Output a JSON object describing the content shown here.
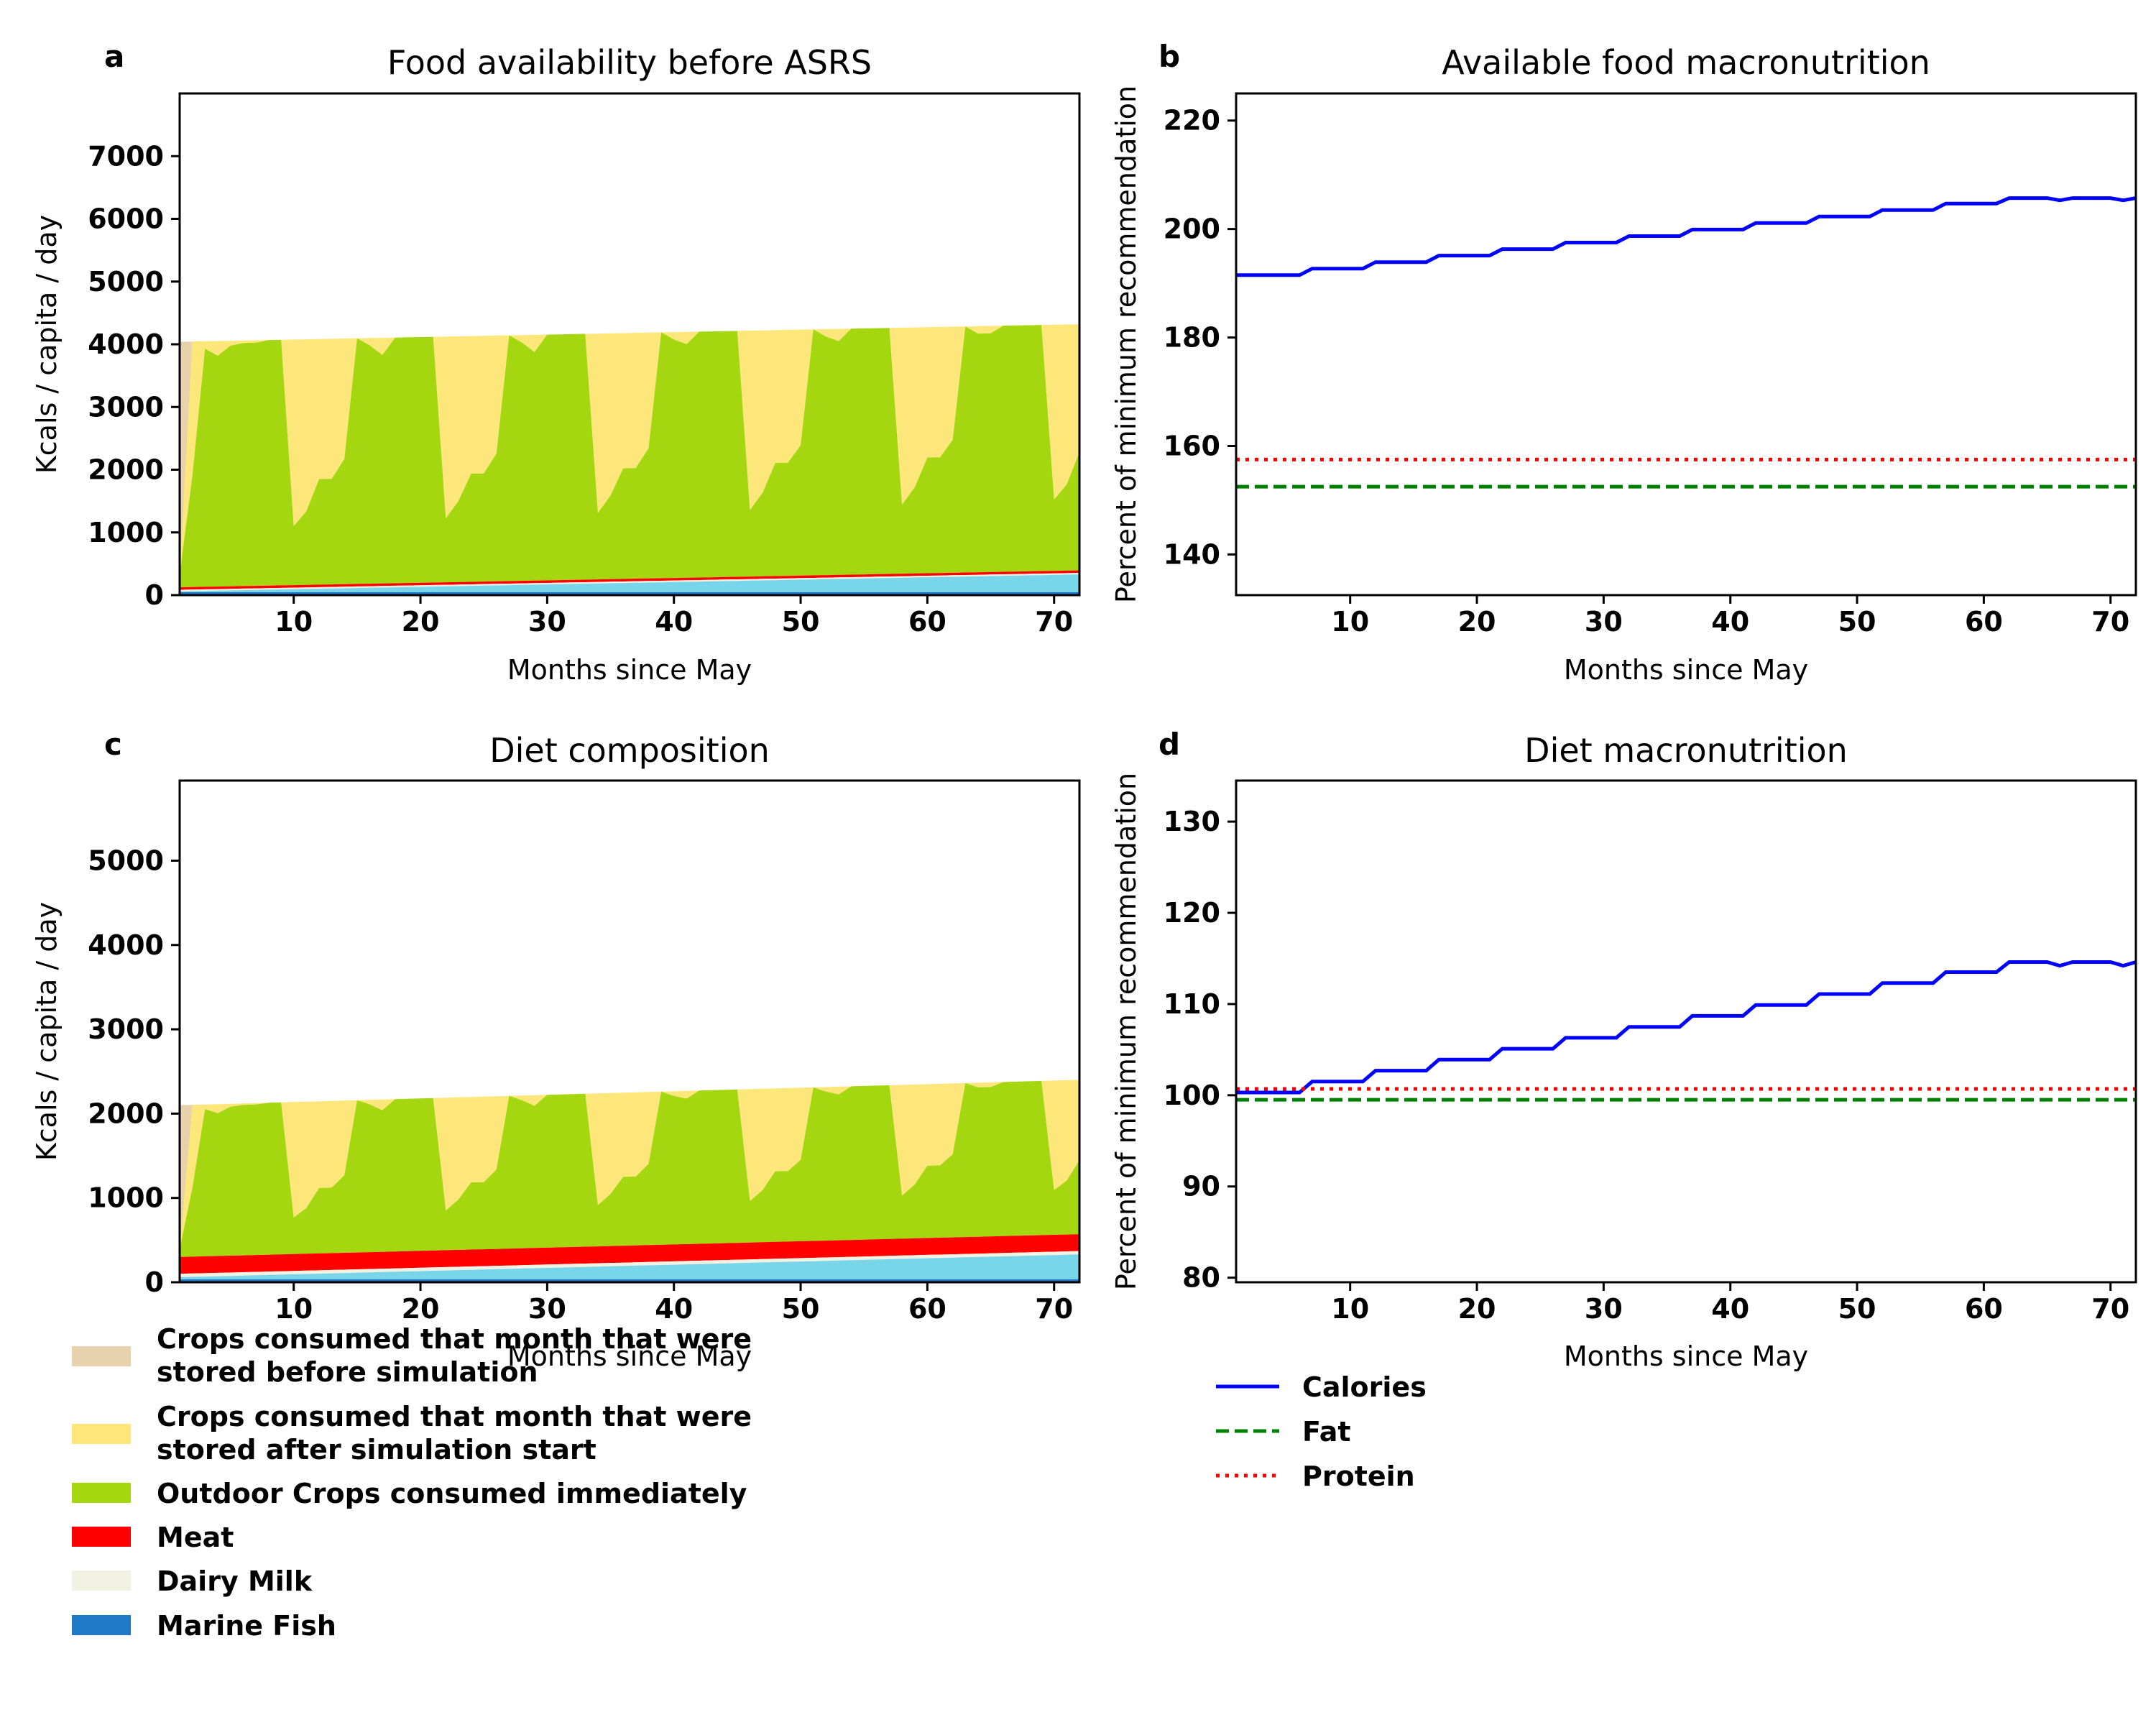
{
  "colors": {
    "stored_before": "#e8d2ad",
    "stored_after": "#fde67a",
    "outdoor": "#a4d710",
    "meat": "#ff0000",
    "dairy": "#f2f2e2",
    "fish": "#1f78c8",
    "fish_fill": "#79d6ea",
    "calories": "#0000ff",
    "fat": "#008000",
    "protein": "#ff0000"
  },
  "legend_left": {
    "items": [
      {
        "key": "stored_before",
        "line1": "Crops consumed that month that were",
        "line2": "stored before simulation"
      },
      {
        "key": "stored_after",
        "line1": "Crops consumed that month that were",
        "line2": "stored after simulation start"
      },
      {
        "key": "outdoor",
        "line1": "Outdoor Crops consumed immediately",
        "line2": ""
      },
      {
        "key": "meat",
        "line1": "Meat",
        "line2": ""
      },
      {
        "key": "dairy",
        "line1": "Dairy Milk",
        "line2": ""
      },
      {
        "key": "fish",
        "line1": "Marine Fish",
        "line2": ""
      }
    ]
  },
  "legend_right": {
    "items": [
      {
        "key": "calories",
        "label": "Calories",
        "style": "solid"
      },
      {
        "key": "fat",
        "label": "Fat",
        "style": "dashed"
      },
      {
        "key": "protein",
        "label": "Protein",
        "style": "dotted"
      }
    ]
  },
  "chart_data": [
    {
      "panel": "a",
      "type": "area",
      "title": "Food availability before ASRS",
      "xlabel": "Months since May",
      "ylabel": "Kcals / capita / day",
      "xlim": [
        1,
        72
      ],
      "ylim": [
        0,
        8000
      ],
      "xticks": [
        10,
        20,
        30,
        40,
        50,
        60,
        70
      ],
      "yticks": [
        0,
        1000,
        2000,
        3000,
        4000,
        5000,
        6000,
        7000
      ],
      "fish_start": 60,
      "fish_end": 330,
      "dairy": 25,
      "meat": 40,
      "total_start": 4040,
      "total_end": 4320,
      "outdoor_fraction": [
        0.05,
        0.45,
        0.97,
        0.94,
        0.98,
        0.99,
        0.99,
        1.0,
        1.0,
        0.24,
        0.3,
        0.43,
        0.43,
        0.51,
        1.0,
        0.97,
        0.93,
        1.0,
        1.0,
        1.0,
        1.0,
        0.26,
        0.33,
        0.44,
        0.44,
        0.52,
        1.0,
        0.97,
        0.93,
        1.0,
        1.0,
        1.0,
        1.0,
        0.27,
        0.34,
        0.45,
        0.45,
        0.53,
        1.0,
        0.97,
        0.95,
        1.0,
        1.0,
        1.0,
        1.0,
        0.27,
        0.34,
        0.46,
        0.46,
        0.53,
        1.0,
        0.97,
        0.95,
        1.0,
        1.0,
        1.0,
        1.0,
        0.28,
        0.35,
        0.47,
        0.47,
        0.54,
        1.0,
        0.97,
        0.97,
        1.0,
        1.0,
        1.0,
        1.0,
        0.29,
        0.35,
        0.48
      ]
    },
    {
      "panel": "b",
      "type": "line",
      "title": "Available food macronutrition",
      "xlabel": "Months since May",
      "ylabel": "Percent of minimum recommendation",
      "xlim": [
        1,
        72
      ],
      "ylim": [
        132.5,
        225
      ],
      "xticks": [
        10,
        20,
        30,
        40,
        50,
        60,
        70
      ],
      "yticks": [
        140,
        160,
        180,
        200,
        220
      ],
      "series": [
        {
          "name": "Calories",
          "start": 191.5,
          "step": 1.2,
          "end": 205.7
        },
        {
          "name": "Fat",
          "value": 152.5
        },
        {
          "name": "Protein",
          "value": 157.5
        }
      ]
    },
    {
      "panel": "c",
      "type": "area",
      "title": "Diet composition",
      "xlabel": "Months since May",
      "ylabel": "Kcals / capita / day",
      "xlim": [
        1,
        72
      ],
      "ylim": [
        0,
        5950
      ],
      "xticks": [
        10,
        20,
        30,
        40,
        50,
        60,
        70
      ],
      "yticks": [
        0,
        1000,
        2000,
        3000,
        4000,
        5000
      ],
      "fish_start": 60,
      "fish_end": 330,
      "dairy": 40,
      "meat": 200,
      "total_start": 2100,
      "total_end": 2400
    },
    {
      "panel": "d",
      "type": "line",
      "title": "Diet macronutrition",
      "xlabel": "Months since May",
      "ylabel": "Percent of minimum recommendation",
      "xlim": [
        1,
        72
      ],
      "ylim": [
        79.5,
        134.5
      ],
      "xticks": [
        10,
        20,
        30,
        40,
        50,
        60,
        70
      ],
      "yticks": [
        80,
        90,
        100,
        110,
        120,
        130
      ],
      "series": [
        {
          "name": "Calories",
          "start": 100.3,
          "step": 1.2,
          "end": 114.6
        },
        {
          "name": "Fat",
          "value": 99.5
        },
        {
          "name": "Protein",
          "value": 100.7
        }
      ]
    }
  ]
}
